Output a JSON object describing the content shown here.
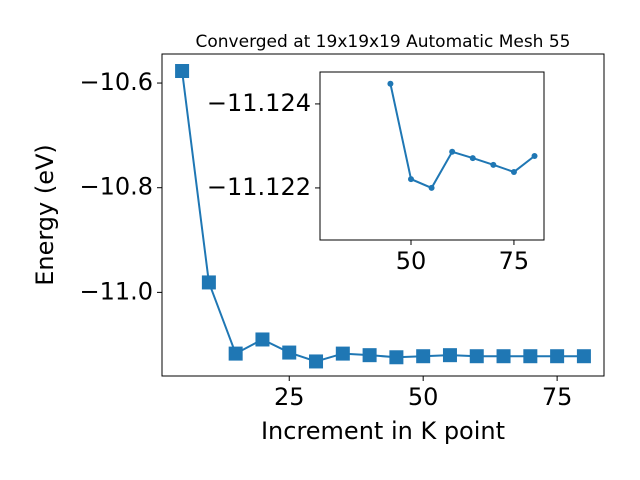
{
  "chart_data": [
    {
      "type": "line",
      "title": "Converged at 19x19x19 Automatic Mesh 55",
      "x_label": "Increment in K point",
      "y_label": "Energy (eV)",
      "x": [
        5,
        10,
        15,
        20,
        25,
        30,
        35,
        40,
        45,
        50,
        55,
        60,
        65,
        70,
        75,
        80
      ],
      "series": [
        {
          "color": "#1f77b4",
          "marker": "square",
          "values": [
            -10.577,
            -10.981,
            -11.117,
            -11.09,
            -11.115,
            -11.132,
            -11.117,
            -11.12,
            -11.124,
            -11.122,
            -11.12,
            -11.122,
            -11.122,
            -11.122,
            -11.122,
            -11.122
          ]
        }
      ],
      "xlim": [
        1.25,
        83.75
      ],
      "xticks": [
        25,
        50,
        75
      ],
      "ylim": [
        -11.1598,
        -10.5445
      ],
      "yticks": [
        {
          "value": -10.6,
          "label": "−10.6"
        },
        {
          "value": -10.8,
          "label": "−10.8"
        },
        {
          "value": -11.0,
          "label": "−11.0"
        }
      ]
    },
    {
      "type": "line",
      "x": [
        45,
        50,
        55,
        60,
        65,
        70,
        75,
        80
      ],
      "series": [
        {
          "color": "#1f77b4",
          "marker": "circle",
          "values": [
            -11.12448,
            -11.12221,
            -11.122,
            -11.12286,
            -11.12271,
            -11.12255,
            -11.12238,
            -11.12276
          ]
        }
      ],
      "xlim": [
        27.9,
        82.3
      ],
      "xticks": [
        50,
        75
      ],
      "ylim": [
        -11.12076,
        -11.12476
      ],
      "yticks": [
        {
          "value": -11.124,
          "label": "−11.124"
        },
        {
          "value": -11.122,
          "label": "−11.122"
        }
      ]
    }
  ]
}
